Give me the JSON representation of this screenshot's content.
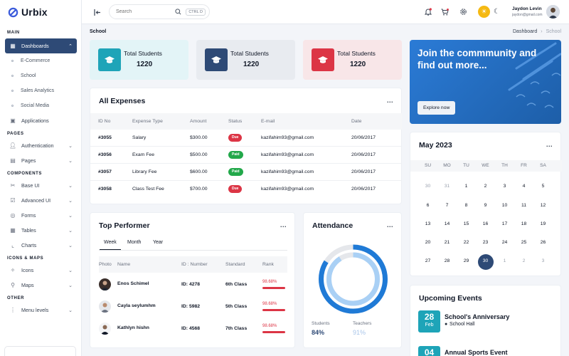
{
  "app": {
    "name": "Urbix"
  },
  "colors": {
    "brand": "#2e4a76",
    "cyan": "#1ea4b8",
    "paid": "#22a84a",
    "due": "#dc3545",
    "sun": "#f5b912"
  },
  "sidebar": {
    "sections": {
      "main": "MAIN",
      "pages": "PAGES",
      "components": "COMPONENTS",
      "icons_maps": "ICONS & MAPS",
      "other": "OTHER"
    },
    "dashboards": "Dashboards",
    "sub": [
      "E-Commerce",
      "School",
      "Sales Analytics",
      "Social Media"
    ],
    "applications": "Applications",
    "authentication": "Authentication",
    "pages": "Pages",
    "base_ui": "Base UI",
    "advanced_ui": "Advanced UI",
    "forms": "Forms",
    "tables": "Tables",
    "charts": "Charts",
    "icons": "Icons",
    "maps": "Maps",
    "menu_levels": "Menu levels"
  },
  "header": {
    "search_placeholder": "Search",
    "shortcut": "CTRL D",
    "user_name": "Jaydon Levin",
    "user_email": "jaydon@gmail.com"
  },
  "breadcrumb": {
    "title": "School",
    "root": "Dashboard",
    "current": "School"
  },
  "stats": [
    {
      "label": "Total Students",
      "value": "1220"
    },
    {
      "label": "Total Students",
      "value": "1220"
    },
    {
      "label": "Total Students",
      "value": "1220"
    }
  ],
  "expenses": {
    "title": "All Expenses",
    "more": "...",
    "columns": [
      "ID No",
      "Expense Type",
      "Amount",
      "Status",
      "E-mail",
      "Date"
    ],
    "rows": [
      {
        "id": "#3055",
        "type": "Salary",
        "amount": "$300.00",
        "status": "Due",
        "email": "kazifahim93@gmail.com",
        "date": "20/06/2017"
      },
      {
        "id": "#3056",
        "type": "Exam Fee",
        "amount": "$500.00",
        "status": "Paid",
        "email": "kazifahim93@gmail.com",
        "date": "20/06/2017"
      },
      {
        "id": "#3057",
        "type": "Library Fee",
        "amount": "$600.00",
        "status": "Paid",
        "email": "kazifahim93@gmail.com",
        "date": "20/06/2017"
      },
      {
        "id": "#3058",
        "type": "Class Test Fee",
        "amount": "$700.00",
        "status": "Due",
        "email": "kazifahim93@gmail.com",
        "date": "20/06/2017"
      }
    ]
  },
  "promo": {
    "title": "Join the commmunity and find out more...",
    "button": "Explore now"
  },
  "calendar": {
    "title": "May 2023",
    "more": "...",
    "days_of_week": [
      "SU",
      "MO",
      "TU",
      "WE",
      "TH",
      "FR",
      "SA"
    ],
    "weeks": [
      [
        "30",
        "31",
        "1",
        "2",
        "3",
        "4",
        "5"
      ],
      [
        "6",
        "7",
        "8",
        "9",
        "10",
        "11",
        "12"
      ],
      [
        "13",
        "14",
        "15",
        "16",
        "17",
        "18",
        "19"
      ],
      [
        "20",
        "21",
        "22",
        "23",
        "24",
        "25",
        "26"
      ],
      [
        "27",
        "28",
        "29",
        "30",
        "1",
        "2",
        "3"
      ]
    ],
    "selected": "30"
  },
  "top_performer": {
    "title": "Top Performer",
    "more": "...",
    "tabs": [
      "Week",
      "Month",
      "Year"
    ],
    "active_tab": "Week",
    "columns": [
      "Photo",
      "Name",
      "ID : Number",
      "Standard",
      "Rank"
    ],
    "rows": [
      {
        "name": "Enos Schimel",
        "id": "ID: 4278",
        "standard": "6th Class",
        "rank": "98.68%",
        "rank_value": 98.68
      },
      {
        "name": "Cayla seylumhm",
        "id": "ID: 5982",
        "standard": "5th Class",
        "rank": "98.68%",
        "rank_value": 98.68
      },
      {
        "name": "Kathlyn hishn",
        "id": "ID: 4568",
        "standard": "7th Class",
        "rank": "98.68%",
        "rank_value": 98.68
      }
    ]
  },
  "attendance": {
    "title": "Attendance",
    "more": "...",
    "students_label": "Students",
    "students_value": "84%",
    "students_pct": 84,
    "teachers_label": "Teachers",
    "teachers_value": "91%",
    "teachers_pct": 91
  },
  "events": {
    "title": "Upcoming Events",
    "items": [
      {
        "day": "28",
        "month": "Feb",
        "title": "School's Anniversary",
        "location": "School Hall"
      },
      {
        "day": "04",
        "month": "",
        "title": "Annual Sports Event",
        "location": ""
      }
    ]
  }
}
